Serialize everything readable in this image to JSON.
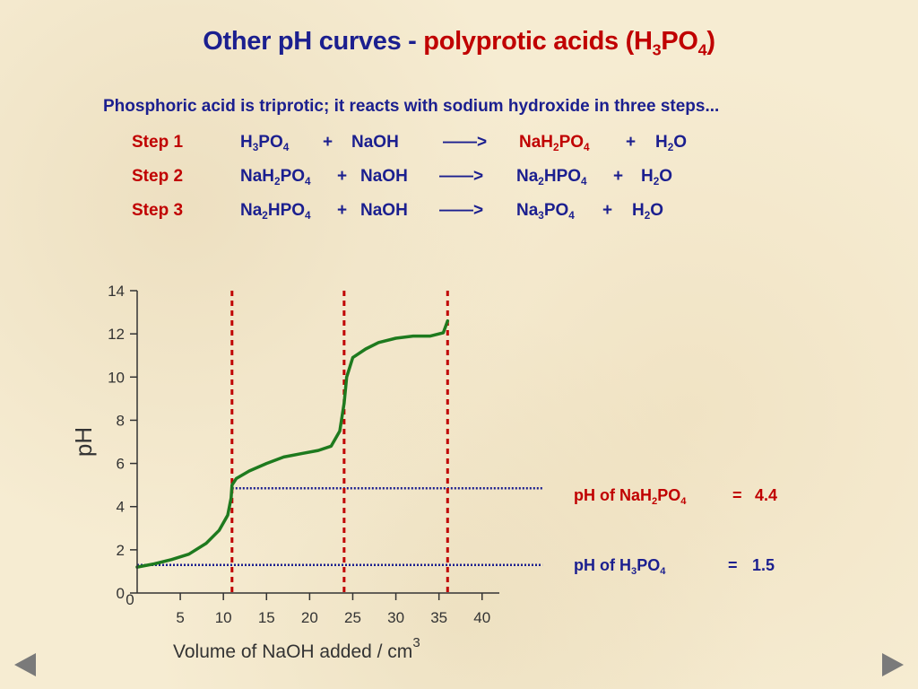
{
  "slide": {
    "title_part1": "Other pH curves - ",
    "title_part2": "polyprotic acids (H",
    "title_sub1": "3",
    "title_part3": "PO",
    "title_sub2": "4",
    "title_part4": ")",
    "intro": "Phosphoric acid is triprotic; it reacts with sodium hydroxide in three steps..."
  },
  "steps": [
    {
      "label": "Step 1",
      "reactant1": [
        "H",
        "3",
        "PO",
        "4"
      ],
      "plus": "+",
      "reactant2": "NaOH",
      "arrow": "——>",
      "product1": [
        "NaH",
        "2",
        "PO",
        "4"
      ],
      "product2": [
        "H",
        "2",
        "O"
      ]
    },
    {
      "label": "Step 2",
      "reactant1": [
        "NaH",
        "2",
        "PO",
        "4"
      ],
      "plus": "+",
      "reactant2": "NaOH",
      "arrow": "——>",
      "product1": [
        "Na",
        "2",
        "HPO",
        "4"
      ],
      "product2": [
        "H",
        "2",
        "O"
      ]
    },
    {
      "label": "Step 3",
      "reactant1": [
        "Na",
        "2",
        "HPO",
        "4"
      ],
      "plus": "+",
      "reactant2": "NaOH",
      "arrow": "——>",
      "product1": [
        "Na",
        "3",
        "PO",
        "4"
      ],
      "product2": [
        "H",
        "2",
        "O"
      ]
    }
  ],
  "annotations": {
    "nah2po4": {
      "pre": "pH of NaH",
      "sub1": "2",
      "mid": "PO",
      "sub2": "4",
      "eq": "=",
      "value": "4.4"
    },
    "h3po4": {
      "pre": "pH of H",
      "sub1": "3",
      "mid": "PO",
      "sub2": "4",
      "eq": "=",
      "value": "1.5"
    }
  },
  "chart_data": {
    "type": "line",
    "ylabel": "pH",
    "xlabel": "Volume of NaOH added / cm",
    "xlabel_sup": "3",
    "xlim": [
      0,
      42
    ],
    "ylim": [
      0,
      14
    ],
    "xticks": [
      5,
      10,
      15,
      20,
      25,
      30,
      35,
      40
    ],
    "yticks": [
      0,
      2,
      4,
      6,
      8,
      10,
      12,
      14
    ],
    "grid": false,
    "colors": {
      "curve": "#1e7a1e",
      "equivalence": "#c00000",
      "reference": "#1b1f8f",
      "axis": "#333333"
    },
    "equivalence_lines": [
      11,
      24,
      36
    ],
    "reference_levels": [
      {
        "y": 1.3,
        "x_start": 0,
        "x_end": 47
      },
      {
        "y": 4.85,
        "x_start": 11,
        "x_end": 47
      }
    ],
    "series": [
      {
        "values": [
          [
            0,
            1.2
          ],
          [
            2,
            1.35
          ],
          [
            4,
            1.55
          ],
          [
            6,
            1.8
          ],
          [
            8,
            2.3
          ],
          [
            9.5,
            2.9
          ],
          [
            10.5,
            3.6
          ],
          [
            10.9,
            4.4
          ],
          [
            11,
            5.0
          ],
          [
            11.5,
            5.3
          ],
          [
            13,
            5.65
          ],
          [
            15,
            6.0
          ],
          [
            17,
            6.3
          ],
          [
            19,
            6.45
          ],
          [
            21,
            6.6
          ],
          [
            22.5,
            6.8
          ],
          [
            23.5,
            7.5
          ],
          [
            24,
            8.8
          ],
          [
            24.3,
            10.0
          ],
          [
            25,
            10.9
          ],
          [
            26.5,
            11.3
          ],
          [
            28,
            11.6
          ],
          [
            30,
            11.8
          ],
          [
            32,
            11.9
          ],
          [
            34,
            11.9
          ],
          [
            35.5,
            12.05
          ],
          [
            36,
            12.6
          ]
        ]
      }
    ]
  }
}
